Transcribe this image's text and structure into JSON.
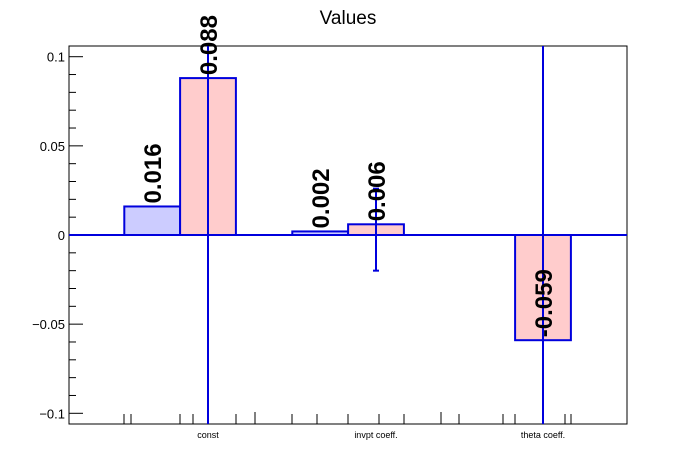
{
  "chart_data": {
    "type": "bar",
    "title": "Values",
    "xlabel": "",
    "ylabel": "",
    "categories": [
      "const",
      "invpt coeff.",
      "theta coeff."
    ],
    "ylim": [
      -0.106,
      0.106
    ],
    "yticks": [
      "0.1",
      "0.05",
      "0",
      "−0.05",
      "−0.1"
    ],
    "ytick_values": [
      0.1,
      0.05,
      0,
      -0.05,
      -0.1
    ],
    "grid": false,
    "legend": "none",
    "series": [
      {
        "color": "#ccccff",
        "values": [
          0.016,
          0.002,
          null
        ],
        "labels": [
          "0.016",
          "0.002",
          ""
        ],
        "error_low": [
          null,
          null,
          null
        ],
        "error_high": [
          null,
          null,
          null
        ]
      },
      {
        "color": "#ffcccc",
        "values": [
          0.088,
          0.006,
          -0.059
        ],
        "labels": [
          "0.088",
          "0.006",
          "-0.059"
        ],
        "error_low": [
          -0.106,
          -0.02,
          -0.106
        ],
        "error_high": [
          0.106,
          0.026,
          0.106
        ]
      }
    ],
    "edge_color": "#0000dd"
  }
}
